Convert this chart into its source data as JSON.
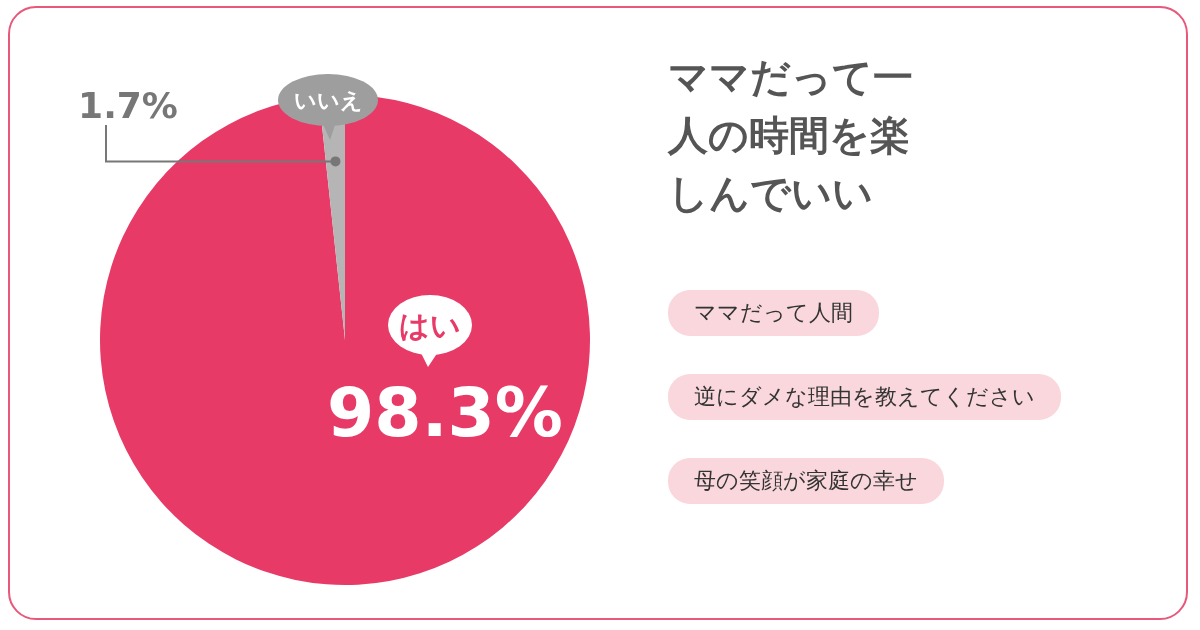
{
  "chart_data": {
    "type": "pie",
    "title": "ママだって一人の時間を楽しんでいい",
    "categories": [
      "はい",
      "いいえ"
    ],
    "values": [
      98.3,
      1.7
    ],
    "colors": [
      "#e83a67",
      "#b5b5b5"
    ],
    "value_labels": [
      "98.3%",
      "1.7%"
    ],
    "annotations": [
      "ママだって人間",
      "逆にダメな理由を教えてください",
      "母の笑顔が家庭の幸せ"
    ]
  }
}
